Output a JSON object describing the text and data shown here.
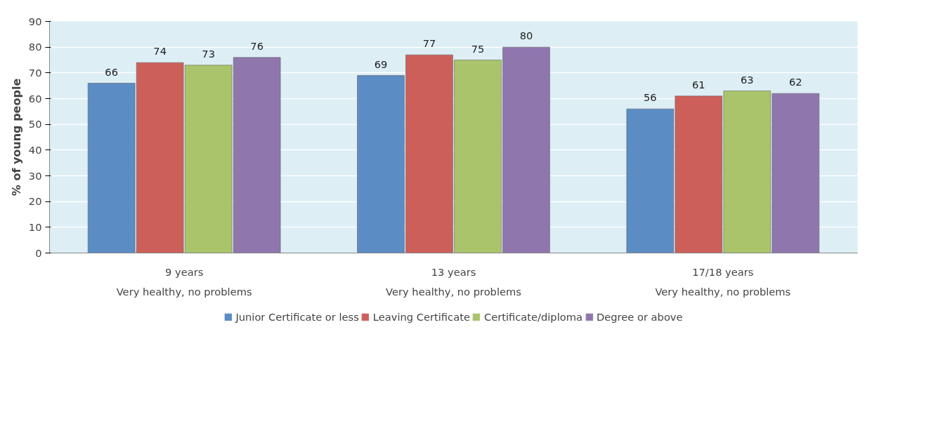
{
  "chart_data": {
    "type": "bar",
    "ylabel": "% of young people",
    "categories": [
      "9 years",
      "13 years",
      "17/18 years"
    ],
    "annotations": [
      "Very healthy, no problems",
      "Very healthy, no problems",
      "Very healthy, no problems"
    ],
    "series": [
      {
        "name": "Junior Certificate or less",
        "color": "#5b8cc4",
        "values": [
          66,
          69,
          56
        ]
      },
      {
        "name": "Leaving Certificate",
        "color": "#cd5f5a",
        "values": [
          74,
          77,
          61
        ]
      },
      {
        "name": "Certificate/diploma",
        "color": "#a9c46a",
        "values": [
          73,
          75,
          63
        ]
      },
      {
        "name": "Degree or above",
        "color": "#8f77ae",
        "values": [
          76,
          80,
          62
        ]
      }
    ],
    "ylim": [
      0,
      90
    ],
    "yticks": [
      0,
      10,
      20,
      30,
      40,
      50,
      60,
      70,
      80,
      90
    ],
    "grid": "y",
    "legend": "bottom",
    "data_labels": true
  }
}
